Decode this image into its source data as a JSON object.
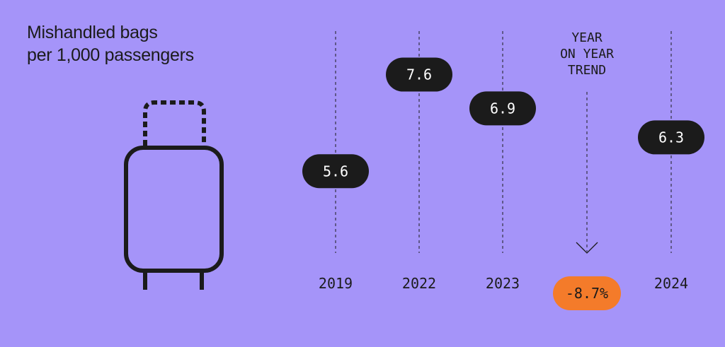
{
  "title_line1": "Mishandled bags",
  "title_line2": "per 1,000 passengers",
  "trend": {
    "label_lines": [
      "YEAR",
      "ON YEAR",
      "TREND"
    ],
    "value": "-8.7%",
    "direction": "down",
    "color": "#f47b2a"
  },
  "colors": {
    "background": "#a594f9",
    "pill": "#1b1b1b",
    "pill_text": "#ffffff",
    "ink": "#1b1b1b"
  },
  "icon": "suitcase-icon",
  "chart_data": {
    "type": "scatter",
    "categories": [
      "2019",
      "2022",
      "2023",
      "2024"
    ],
    "values": [
      5.6,
      7.6,
      6.9,
      6.3
    ],
    "value_labels": [
      "5.6",
      "7.6",
      "6.9",
      "6.3"
    ],
    "title": "Mishandled bags per 1,000 passengers",
    "ylim": [
      3,
      8.5
    ],
    "grid": false,
    "legend": "none"
  }
}
